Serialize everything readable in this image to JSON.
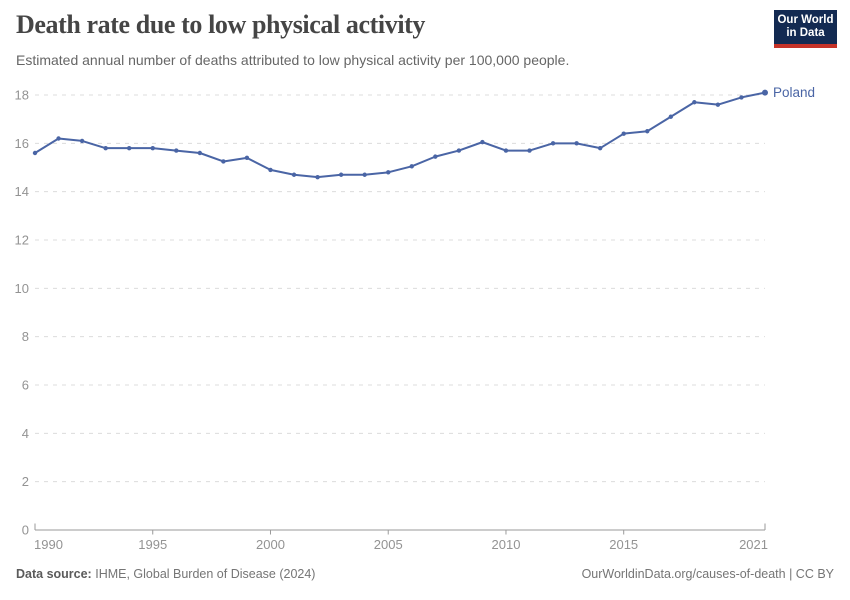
{
  "header": {
    "title": "Death rate due to low physical activity",
    "subtitle": "Estimated annual number of deaths attributed to low physical activity per 100,000 people.",
    "logo": {
      "line1": "Our World",
      "line2": "in Data"
    }
  },
  "chart_data": {
    "type": "line",
    "title": "Death rate due to low physical activity",
    "xlabel": "",
    "ylabel": "",
    "xlim": [
      1990,
      2021
    ],
    "ylim": [
      0,
      18
    ],
    "x_ticks": [
      1990,
      1995,
      2000,
      2005,
      2010,
      2015,
      2021
    ],
    "y_ticks": [
      0,
      2,
      4,
      6,
      8,
      10,
      12,
      14,
      16,
      18
    ],
    "grid": "horizontal-dashed",
    "legend": "end-of-line-label",
    "series": [
      {
        "name": "Poland",
        "color": "#4a65a5",
        "x": [
          1990,
          1991,
          1992,
          1993,
          1994,
          1995,
          1996,
          1997,
          1998,
          1999,
          2000,
          2001,
          2002,
          2003,
          2004,
          2005,
          2006,
          2007,
          2008,
          2009,
          2010,
          2011,
          2012,
          2013,
          2014,
          2015,
          2016,
          2017,
          2018,
          2019,
          2020,
          2021
        ],
        "values": [
          15.6,
          16.2,
          16.1,
          15.8,
          15.8,
          15.8,
          15.7,
          15.6,
          15.25,
          15.4,
          14.9,
          14.7,
          14.6,
          14.7,
          14.7,
          14.8,
          15.05,
          15.45,
          15.7,
          16.05,
          15.7,
          15.7,
          16.0,
          16.0,
          15.8,
          16.4,
          16.5,
          17.1,
          17.7,
          17.6,
          17.9,
          18.1
        ]
      }
    ]
  },
  "colors": {
    "line": "#4a65a5",
    "grid": "#dcdcdc",
    "axis": "#9a9a9a",
    "tick_label": "#939393",
    "title_color": "#454545",
    "subtitle_color": "#666666",
    "footer_color": "#757575",
    "logo_bg": "#132a52",
    "logo_accent": "#c53228"
  },
  "footer": {
    "datasource_label": "Data source:",
    "datasource_value": "IHME, Global Burden of Disease (2024)",
    "credit": "OurWorldinData.org/causes-of-death | CC BY"
  }
}
